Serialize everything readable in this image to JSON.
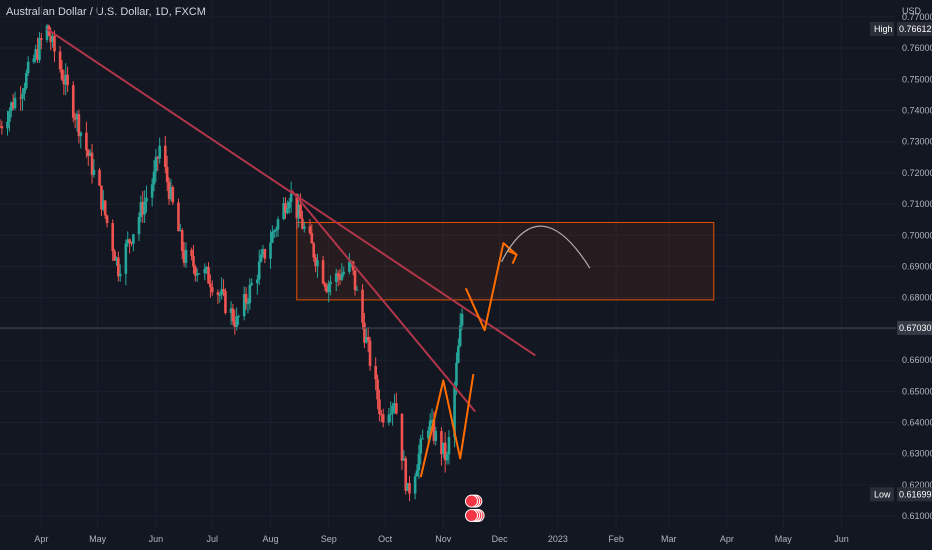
{
  "header": {
    "title": "Australian Dollar / U.S. Dollar, 1D, FXCM"
  },
  "colors": {
    "background": "#131722",
    "bull": "#26a69a",
    "bear": "#ef5350",
    "trendline": "#b2364a",
    "zone_border": "#e65100",
    "zone_fill": "rgba(230,81,0,0.09)",
    "projection": "#ff6d00",
    "curve": "#b0b0b0",
    "price_line": "#434651"
  },
  "chart_data": {
    "type": "candlestick",
    "title": "Australian Dollar / U.S. Dollar, 1D, FXCM",
    "y_unit": "USD",
    "ylim": [
      0.6062,
      0.7754
    ],
    "xlim": [
      "2022-03-10",
      "2023-06-30"
    ],
    "y_ticks": [
      0.61,
      0.62,
      0.63,
      0.64,
      0.65,
      0.66,
      0.67,
      0.68,
      0.69,
      0.7,
      0.71,
      0.72,
      0.73,
      0.74,
      0.75,
      0.76,
      0.77
    ],
    "y_tick_labels": [
      "0.61000",
      "0.62000",
      "0.63000",
      "0.64000",
      "0.65000",
      "0.66000",
      "0.67000",
      "0.68000",
      "0.69000",
      "0.70000",
      "0.71000",
      "0.72000",
      "0.73000",
      "0.74000",
      "0.75000",
      "0.76000",
      "0.77000"
    ],
    "x_ticks": [
      {
        "date": "2022-04-01",
        "label": "Apr"
      },
      {
        "date": "2022-05-01",
        "label": "May"
      },
      {
        "date": "2022-06-01",
        "label": "Jun"
      },
      {
        "date": "2022-07-01",
        "label": "Jul"
      },
      {
        "date": "2022-08-01",
        "label": "Aug"
      },
      {
        "date": "2022-09-01",
        "label": "Sep"
      },
      {
        "date": "2022-10-01",
        "label": "Oct"
      },
      {
        "date": "2022-11-01",
        "label": "Nov"
      },
      {
        "date": "2022-12-01",
        "label": "Dec"
      },
      {
        "date": "2023-01-01",
        "label": "2023"
      },
      {
        "date": "2023-02-01",
        "label": "Feb"
      },
      {
        "date": "2023-03-01",
        "label": "Mar"
      },
      {
        "date": "2023-04-01",
        "label": "Apr"
      },
      {
        "date": "2023-05-01",
        "label": "May"
      },
      {
        "date": "2023-06-01",
        "label": "Jun"
      }
    ],
    "price_labels": [
      {
        "name": "High",
        "value": "0.76612"
      },
      {
        "name": "",
        "value": "0.67030"
      },
      {
        "name": "Low",
        "value": "0.61699"
      }
    ],
    "last_price": 0.6703,
    "anchors": [
      [
        "2022-03-10",
        0.735
      ],
      [
        "2022-03-22",
        0.748
      ],
      [
        "2022-04-04",
        0.7661
      ],
      [
        "2022-04-18",
        0.741
      ],
      [
        "2022-05-01",
        0.716
      ],
      [
        "2022-05-12",
        0.6896
      ],
      [
        "2022-05-31",
        0.7184
      ],
      [
        "2022-06-03",
        0.7283
      ],
      [
        "2022-06-16",
        0.693
      ],
      [
        "2022-06-30",
        0.686
      ],
      [
        "2022-07-14",
        0.672
      ],
      [
        "2022-08-11",
        0.7136
      ],
      [
        "2022-08-31",
        0.6845
      ],
      [
        "2022-09-13",
        0.69
      ],
      [
        "2022-09-29",
        0.642
      ],
      [
        "2022-10-06",
        0.648
      ],
      [
        "2022-10-13",
        0.6171
      ],
      [
        "2022-10-24",
        0.64
      ],
      [
        "2022-11-03",
        0.628
      ],
      [
        "2022-11-11",
        0.675
      ]
    ],
    "trendlines": [
      {
        "name": "long-term downtrend",
        "from": [
          "2022-04-04",
          0.7661
        ],
        "to": [
          "2022-12-20",
          0.6615
        ]
      },
      {
        "name": "short-term downtrend",
        "from": [
          "2022-08-12",
          0.7145
        ],
        "to": [
          "2022-11-18",
          0.6435
        ]
      }
    ],
    "zone": {
      "from": "2022-08-15",
      "to": "2023-03-25",
      "top": 0.7041,
      "bottom": 0.6793
    },
    "projection_path": [
      [
        "2022-11-13",
        0.683
      ],
      [
        "2022-11-23",
        0.6696
      ],
      [
        "2022-12-03",
        0.6975
      ],
      [
        "2022-12-10",
        0.6938
      ]
    ],
    "history_zigzag": [
      [
        "2022-10-20",
        0.6225
      ],
      [
        "2022-11-01",
        0.6535
      ],
      [
        "2022-11-10",
        0.6285
      ],
      [
        "2022-11-17",
        0.6555
      ]
    ],
    "curve_path": [
      [
        "2022-12-02",
        0.6915
      ],
      [
        "2022-12-22",
        0.7083
      ],
      [
        "2023-01-18",
        0.6895
      ]
    ],
    "event_markers": [
      {
        "date": "2022-11-16",
        "value": 0.6148,
        "count": 3
      },
      {
        "date": "2022-11-16",
        "value": 0.6102,
        "count": 4
      }
    ]
  }
}
